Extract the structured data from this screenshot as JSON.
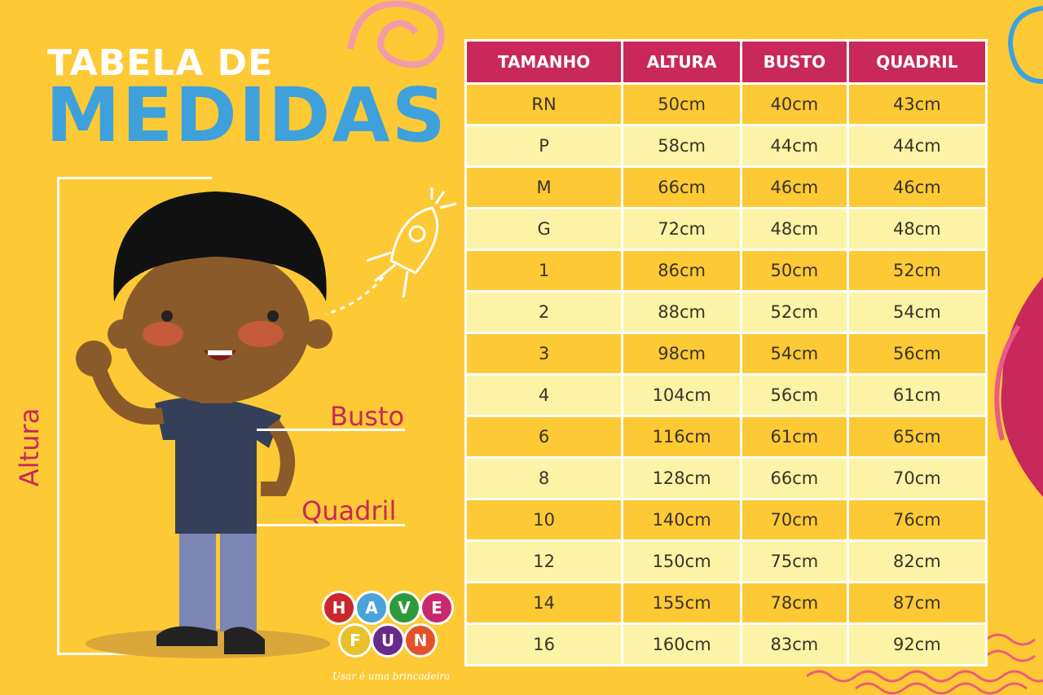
{
  "title": {
    "line1": "TABELA DE",
    "line2": "MEDIDAS"
  },
  "labels": {
    "altura": "Altura",
    "busto": "Busto",
    "quadril": "Quadril"
  },
  "logo": {
    "letters": [
      "H",
      "A",
      "V",
      "E",
      "F",
      "U",
      "N"
    ],
    "colors": [
      "#c8282e",
      "#4aa3d9",
      "#2e9a3c",
      "#c8286e",
      "#e8c22a",
      "#6a2a8a",
      "#e4502a"
    ],
    "tagline": "Usar é uma brincadeira"
  },
  "colors": {
    "background": "#fdc935",
    "header": "#c8285a",
    "row_light": "#fdf3a6",
    "title_blue": "#3fa1dc"
  },
  "table": {
    "headers": [
      "TAMANHO",
      "ALTURA",
      "BUSTO",
      "QUADRIL"
    ],
    "rows": [
      [
        "RN",
        "50cm",
        "40cm",
        "43cm"
      ],
      [
        "P",
        "58cm",
        "44cm",
        "44cm"
      ],
      [
        "M",
        "66cm",
        "46cm",
        "46cm"
      ],
      [
        "G",
        "72cm",
        "48cm",
        "48cm"
      ],
      [
        "1",
        "86cm",
        "50cm",
        "52cm"
      ],
      [
        "2",
        "88cm",
        "52cm",
        "54cm"
      ],
      [
        "3",
        "98cm",
        "54cm",
        "56cm"
      ],
      [
        "4",
        "104cm",
        "56cm",
        "61cm"
      ],
      [
        "6",
        "116cm",
        "61cm",
        "65cm"
      ],
      [
        "8",
        "128cm",
        "66cm",
        "70cm"
      ],
      [
        "10",
        "140cm",
        "70cm",
        "76cm"
      ],
      [
        "12",
        "150cm",
        "75cm",
        "82cm"
      ],
      [
        "14",
        "155cm",
        "78cm",
        "87cm"
      ],
      [
        "16",
        "160cm",
        "83cm",
        "92cm"
      ]
    ]
  }
}
